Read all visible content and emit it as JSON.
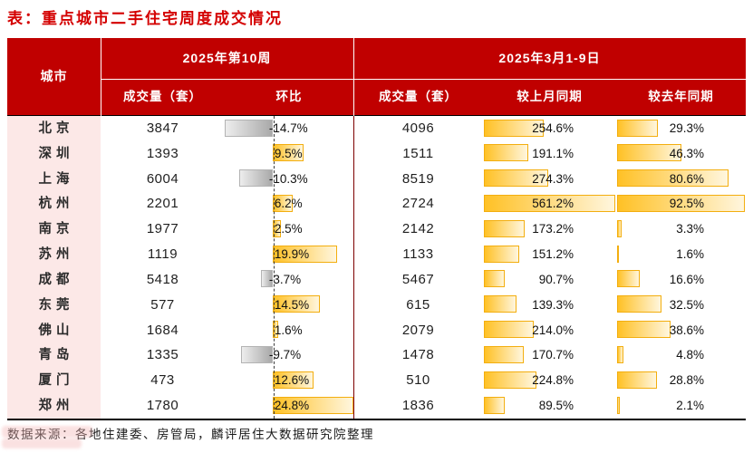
{
  "title": "表：重点城市二手住宅周度成交情况",
  "footer": {
    "source_note": "数据来源：各地住建委、房管局，麟评居住大数据研究院整理"
  },
  "table_header": {
    "city": "城市",
    "group_week": "2025年第10周",
    "group_period": "2025年3月1-9日",
    "volume_week": "成交量（套）",
    "wow": "环比",
    "volume_period": "成交量（套）",
    "mom": "较上月同期",
    "yoy": "较去年同期"
  },
  "colors": {
    "header_red": "#c00000",
    "title_red": "#d40000",
    "city_pink": "#fce8e7",
    "bar_gold": "#ffc125",
    "bar_gold_fade": "#fff6de",
    "bar_gray": "#a9a9a9",
    "section_divider": "#7d0000"
  },
  "chart_data": {
    "type": "table",
    "title": "重点城市二手住宅周度成交情况",
    "columns": [
      "城市",
      "2025年第10周 成交量（套）",
      "2025年第10周 环比",
      "2025年3月1-9日 成交量（套）",
      "2025年3月1-9日 较上月同期",
      "2025年3月1-9日 较去年同期"
    ],
    "bar_axis": {
      "wow_min": -14.7,
      "wow_max": 24.8,
      "mom_max": 561.2,
      "yoy_max": 92.5
    },
    "rows": [
      {
        "city": "北京",
        "week_vol": "3847",
        "wow": -14.7,
        "wow_label": "-14.7%",
        "period_vol": "4096",
        "mom": 254.6,
        "mom_label": "254.6%",
        "yoy": 29.3,
        "yoy_label": "29.3%"
      },
      {
        "city": "深圳",
        "week_vol": "1393",
        "wow": 9.5,
        "wow_label": "9.5%",
        "period_vol": "1511",
        "mom": 191.1,
        "mom_label": "191.1%",
        "yoy": 46.3,
        "yoy_label": "46.3%"
      },
      {
        "city": "上海",
        "week_vol": "6004",
        "wow": -10.3,
        "wow_label": "-10.3%",
        "period_vol": "8519",
        "mom": 274.3,
        "mom_label": "274.3%",
        "yoy": 80.6,
        "yoy_label": "80.6%"
      },
      {
        "city": "杭州",
        "week_vol": "2201",
        "wow": 6.2,
        "wow_label": "6.2%",
        "period_vol": "2724",
        "mom": 561.2,
        "mom_label": "561.2%",
        "yoy": 92.5,
        "yoy_label": "92.5%"
      },
      {
        "city": "南京",
        "week_vol": "1977",
        "wow": 2.5,
        "wow_label": "2.5%",
        "period_vol": "2142",
        "mom": 173.2,
        "mom_label": "173.2%",
        "yoy": 3.3,
        "yoy_label": "3.3%"
      },
      {
        "city": "苏州",
        "week_vol": "1119",
        "wow": 19.9,
        "wow_label": "19.9%",
        "period_vol": "1133",
        "mom": 151.2,
        "mom_label": "151.2%",
        "yoy": 1.6,
        "yoy_label": "1.6%"
      },
      {
        "city": "成都",
        "week_vol": "5418",
        "wow": -3.7,
        "wow_label": "-3.7%",
        "period_vol": "5467",
        "mom": 90.7,
        "mom_label": "90.7%",
        "yoy": 16.6,
        "yoy_label": "16.6%"
      },
      {
        "city": "东莞",
        "week_vol": "577",
        "wow": 14.5,
        "wow_label": "14.5%",
        "period_vol": "615",
        "mom": 139.3,
        "mom_label": "139.3%",
        "yoy": 32.5,
        "yoy_label": "32.5%"
      },
      {
        "city": "佛山",
        "week_vol": "1684",
        "wow": 1.6,
        "wow_label": "1.6%",
        "period_vol": "2079",
        "mom": 214.0,
        "mom_label": "214.0%",
        "yoy": 38.6,
        "yoy_label": "38.6%"
      },
      {
        "city": "青岛",
        "week_vol": "1335",
        "wow": -9.7,
        "wow_label": "-9.7%",
        "period_vol": "1478",
        "mom": 170.7,
        "mom_label": "170.7%",
        "yoy": 4.8,
        "yoy_label": "4.8%"
      },
      {
        "city": "厦门",
        "week_vol": "473",
        "wow": 12.6,
        "wow_label": "12.6%",
        "period_vol": "510",
        "mom": 224.8,
        "mom_label": "224.8%",
        "yoy": 28.8,
        "yoy_label": "28.8%"
      },
      {
        "city": "郑州",
        "week_vol": "1780",
        "wow": 24.8,
        "wow_label": "24.8%",
        "period_vol": "1836",
        "mom": 89.5,
        "mom_label": "89.5%",
        "yoy": 2.1,
        "yoy_label": "2.1%"
      }
    ]
  }
}
